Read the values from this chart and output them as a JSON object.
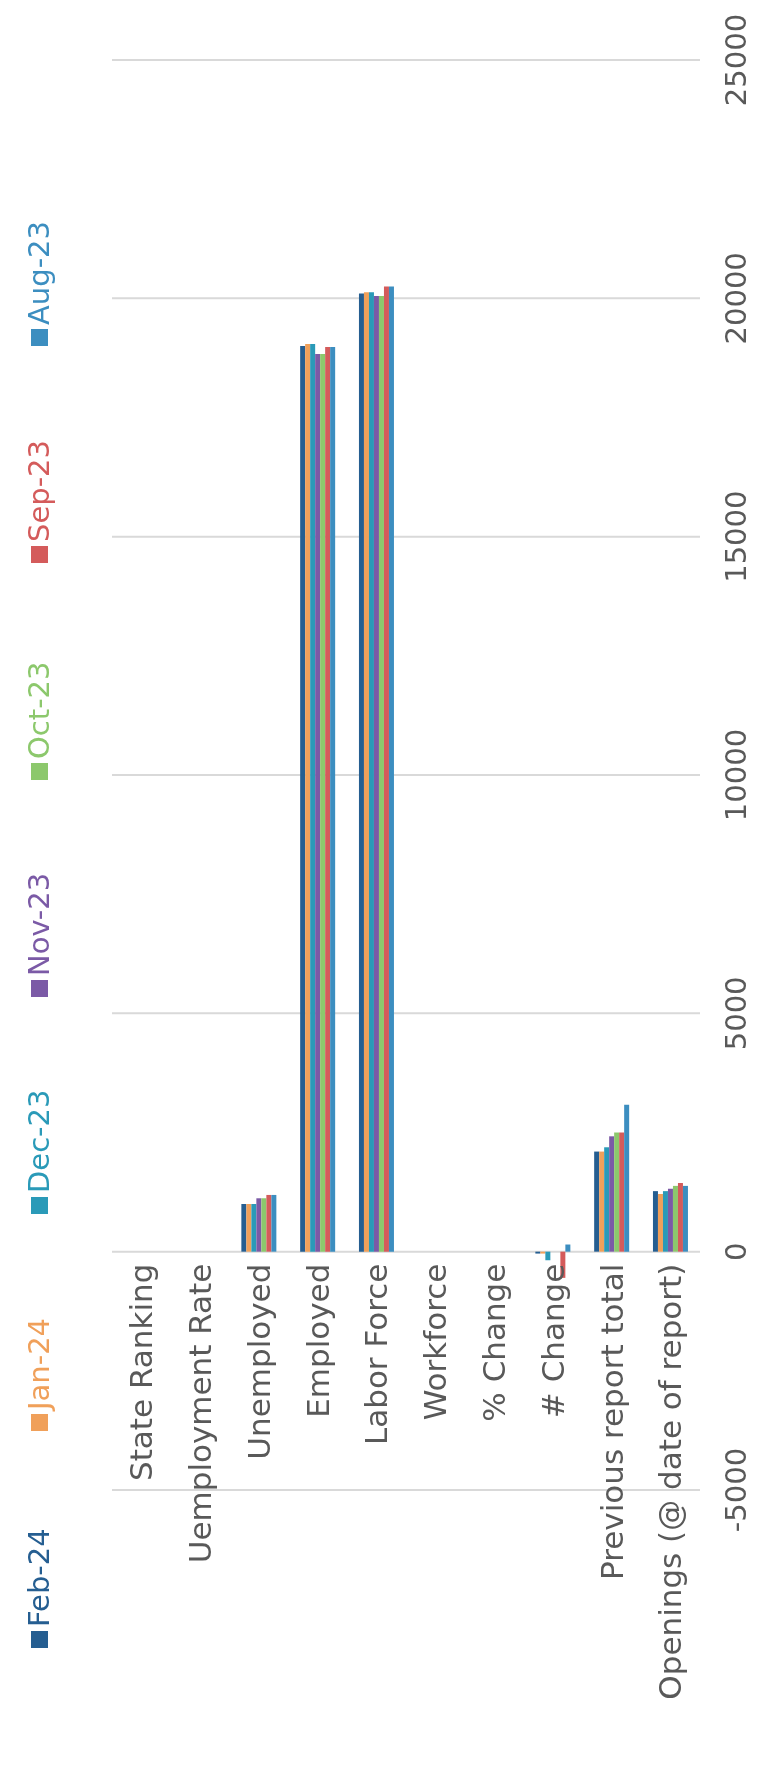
{
  "chart_data": {
    "type": "bar",
    "categories": [
      "State Ranking",
      "Uemployment Rate",
      "Unemployed",
      "Employed",
      "Labor Force",
      "Workforce",
      "% Change",
      "# Change",
      "Previous report total",
      "Openings (@ date of report)"
    ],
    "series": [
      {
        "name": "Feb-24",
        "color": "#255e91",
        "values": [
          null,
          null,
          1000,
          19000,
          20100,
          null,
          null,
          -40,
          2100,
          1270
        ]
      },
      {
        "name": "Jan-24",
        "color": "#f0a05a",
        "values": [
          null,
          null,
          1000,
          19040,
          20130,
          null,
          null,
          -40,
          2100,
          1210
        ]
      },
      {
        "name": "Dec-23",
        "color": "#2a9ab8",
        "values": [
          null,
          null,
          1000,
          19040,
          20130,
          null,
          null,
          -180,
          2190,
          1270
        ]
      },
      {
        "name": "Nov-23",
        "color": "#7b5aa6",
        "values": [
          null,
          null,
          1120,
          18830,
          20050,
          null,
          null,
          0,
          2420,
          1320
        ]
      },
      {
        "name": "Oct-23",
        "color": "#8cc86c",
        "values": [
          null,
          null,
          1120,
          18830,
          20050,
          null,
          null,
          0,
          2500,
          1380
        ]
      },
      {
        "name": "Sep-23",
        "color": "#d45b5b",
        "values": [
          null,
          null,
          1190,
          18980,
          20250,
          null,
          null,
          -550,
          2500,
          1440
        ]
      },
      {
        "name": "Aug-23",
        "color": "#3c8ec0",
        "values": [
          null,
          null,
          1190,
          18980,
          20250,
          null,
          null,
          150,
          3080,
          1380
        ]
      }
    ],
    "ylim": [
      -5000,
      25000
    ],
    "yticks": [
      -5000,
      0,
      5000,
      10000,
      15000,
      20000,
      25000
    ],
    "grid": "y",
    "legend": "left"
  }
}
